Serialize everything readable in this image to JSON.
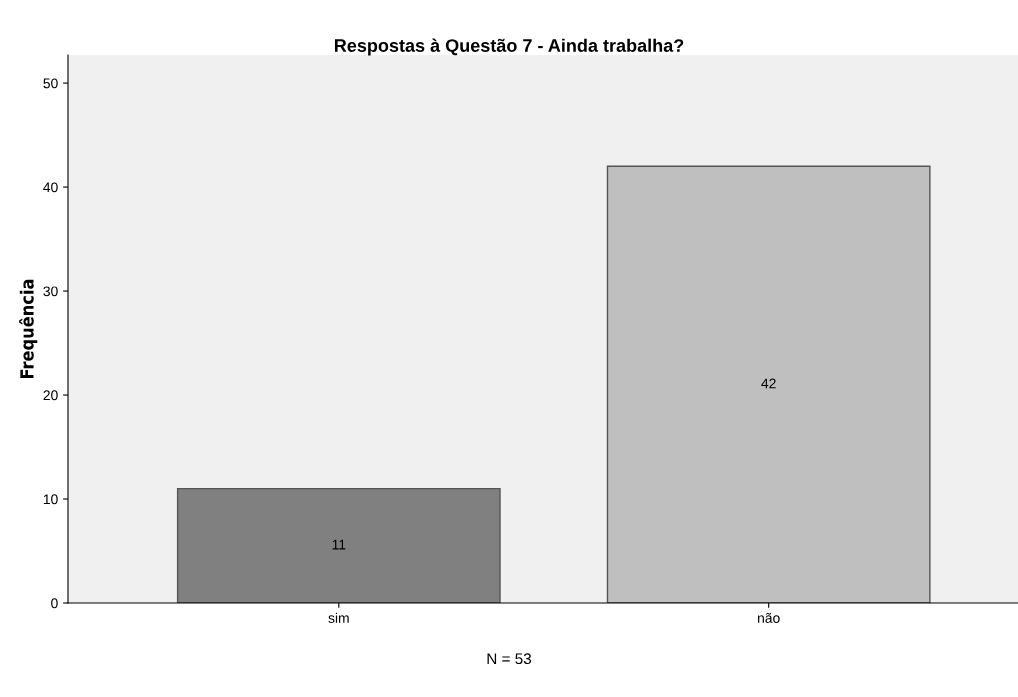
{
  "chart_data": {
    "type": "bar",
    "title": "Respostas à Questão 7 - Ainda trabalha?",
    "ylabel": "Frequência",
    "categories": [
      "sim",
      "não"
    ],
    "values": [
      11,
      42
    ],
    "colors": [
      "#808080",
      "#bfbfbf"
    ],
    "ylim": [
      0,
      52.7
    ],
    "yticks": [
      0,
      10,
      20,
      30,
      40,
      50
    ],
    "grid": false,
    "data_labels": true,
    "annotations": [
      "N = 53"
    ]
  }
}
